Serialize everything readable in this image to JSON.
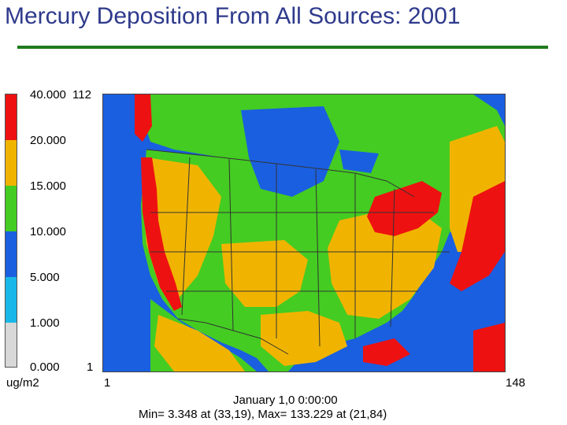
{
  "title": "Mercury Deposition From All Sources: 2001",
  "legend": {
    "unit": "ug/m2",
    "labels": [
      "40.000",
      "20.000",
      "15.000",
      "10.000",
      "5.000",
      "1.000",
      "0.000"
    ],
    "colors": [
      "#ee1111",
      "#f0b400",
      "#44cc22",
      "#1a5fe0",
      "#1ab8e8",
      "#d8d8d8"
    ]
  },
  "axis": {
    "y_top": "112",
    "y_bottom": "1",
    "x_left": "1",
    "x_right": "148"
  },
  "footer": {
    "date": "January 1,0 0:00:00",
    "stats": "Min=   3.348 at (33,19), Max= 133.229 at (21,84)"
  },
  "map_colors": {
    "ocean": "#1a5fe0",
    "land": "#44cc22",
    "mid": "#f0b400",
    "high": "#ee1111",
    "lines": "#333333"
  }
}
